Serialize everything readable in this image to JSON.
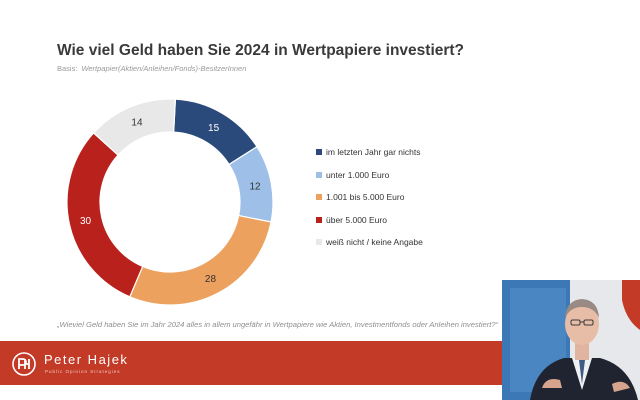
{
  "title": "Wie viel Geld haben Sie 2024 in Wertpapiere investiert?",
  "basis_label": "Basis:",
  "basis_value": "Wertpapier(Aktien/Anleihen/Fonds)-BesitzerInnen",
  "question": "„Wieviel Geld haben Sie im Jahr 2024 alles in allem ungefähr in Wertpapiere wie Aktien, Investmentfonds oder Anleihen investiert?“",
  "brand": {
    "name": "Peter Hajek",
    "tagline": "Public Opinion Strategies"
  },
  "chart_data": {
    "type": "pie",
    "donut": true,
    "start": "top, clockwise, after the 'weiß nicht / keine Angabe' segment",
    "categories": [
      "im letzten Jahr gar nichts",
      "unter 1.000 Euro",
      "1.001 bis 5.000 Euro",
      "über 5.000 Euro",
      "weiß nicht / keine Angabe"
    ],
    "values": [
      15,
      12,
      28,
      30,
      14
    ],
    "colors": [
      "#2b4a7c",
      "#9ec0e8",
      "#eda15e",
      "#b9221c",
      "#e8e8e8"
    ],
    "label_colors": [
      "#ffffff",
      "#333333",
      "#333333",
      "#ffffff",
      "#333333"
    ],
    "legend": "right"
  }
}
